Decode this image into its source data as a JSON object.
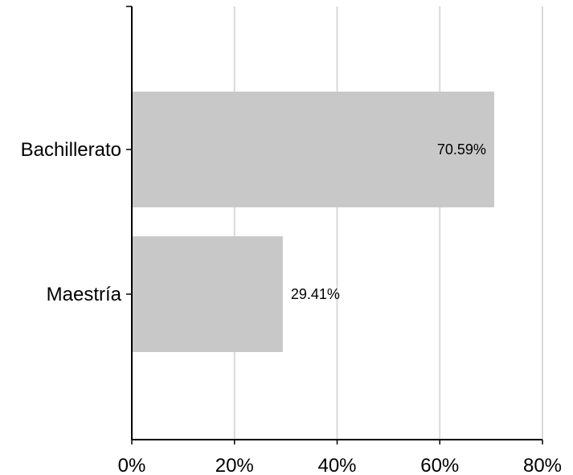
{
  "chart_data": {
    "type": "bar",
    "orientation": "horizontal",
    "categories": [
      "Bachillerato",
      "Maestría"
    ],
    "values": [
      70.59,
      29.41
    ],
    "data_labels": [
      "70.59%",
      "29.41%"
    ],
    "xlim": [
      0,
      80
    ],
    "x_ticks": [
      0,
      20,
      40,
      60,
      80
    ],
    "x_tick_labels": [
      "0%",
      "20%",
      "40%",
      "60%",
      "80%"
    ],
    "grid": "vertical",
    "bar_color": "#c8c8c8",
    "grid_color": "#d9d9d9",
    "title": "",
    "xlabel": "",
    "ylabel": ""
  }
}
